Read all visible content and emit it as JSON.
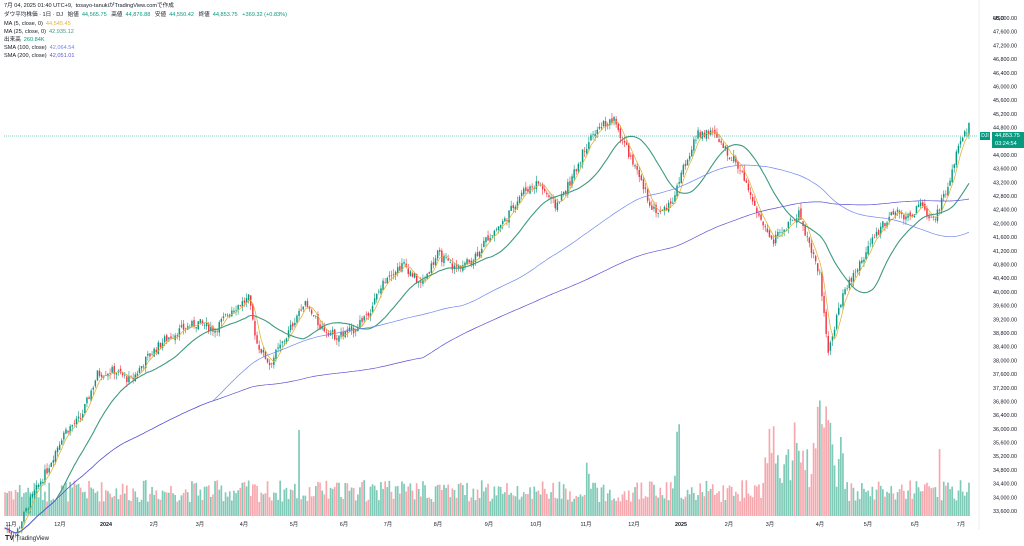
{
  "header": {
    "line1_prefix": "7月 04, 2025 01:40 UTC+9,",
    "line1_user": "tosayo-tanukiがTradingView.comで作成",
    "symbol_title": "ダウ平均株価 · 1日 · DJ",
    "ohlc": {
      "open_label": "始値",
      "open": "44,565.75",
      "high_label": "高値",
      "high": "44,876.88",
      "low_label": "安値",
      "low": "44,550.42",
      "close_label": "終値",
      "close": "44,853.75",
      "change": "+369.32 (+0.83%)"
    },
    "indicators": [
      {
        "label": "MA (5, close, 0)",
        "value": "44,545.45",
        "color": "#e0b43b"
      },
      {
        "label": "MA (25, close, 0)",
        "value": "42,935.12",
        "color": "#3e9a80"
      },
      {
        "label": "出来高",
        "value": "260.84K",
        "color": "#089981"
      },
      {
        "label": "SMA (100, close)",
        "value": "42,064.54",
        "color": "#6f86f0"
      },
      {
        "label": "SMA (200, close)",
        "value": "42,051.01",
        "color": "#5b52d6"
      }
    ]
  },
  "price_axis": {
    "currency": "USD",
    "ticks": [
      "48,000.00",
      "47,600.00",
      "47,200.00",
      "46,800.00",
      "46,400.00",
      "46,000.00",
      "45,600.00",
      "45,200.00",
      "44,800.00",
      "44,400.00",
      "44,000.00",
      "43,600.00",
      "43,200.00",
      "42,800.00",
      "42,400.00",
      "42,000.00",
      "41,600.00",
      "41,200.00",
      "40,800.00",
      "40,400.00",
      "40,000.00",
      "39,600.00",
      "39,200.00",
      "38,800.00",
      "38,400.00",
      "38,000.00",
      "37,600.00",
      "37,200.00",
      "36,800.00",
      "36,400.00",
      "36,000.00",
      "35,600.00",
      "35,200.00",
      "34,800.00",
      "34,400.00",
      "34,000.00",
      "33,600.00"
    ],
    "last_price_tag": "44,853.75",
    "second_tag": "03:24:54",
    "small_tag": "DJI"
  },
  "time_axis": {
    "labels": [
      "11月",
      "12月",
      "2024",
      "2月",
      "3月",
      "4月",
      "5月",
      "6月",
      "7月",
      "8月",
      "9月",
      "10月",
      "11月",
      "12月",
      "2025",
      "2月",
      "3月",
      "4月",
      "5月",
      "6月",
      "7月"
    ]
  },
  "brand": {
    "name": "TradingView",
    "logo": "TV"
  },
  "chart_data": {
    "type": "candlestick",
    "x_range": [
      "2023-10-24",
      "2025-07-03"
    ],
    "ylim": [
      33600,
      48200
    ],
    "grid": false,
    "colors": {
      "up": "#089981",
      "down": "#f23645",
      "ma5": "#e0b43b",
      "ma25": "#3e9a80",
      "sma100": "#6f86f0",
      "sma200": "#5b52d6",
      "vol_up": "#7fcbb8",
      "vol_down": "#f7a8ae"
    },
    "close_path_keypoints": [
      [
        0,
        33100
      ],
      [
        5,
        32900
      ],
      [
        12,
        33900
      ],
      [
        20,
        34800
      ],
      [
        28,
        35900
      ],
      [
        36,
        36300
      ],
      [
        44,
        37600
      ],
      [
        52,
        37700
      ],
      [
        60,
        37400
      ],
      [
        68,
        38100
      ],
      [
        76,
        38600
      ],
      [
        84,
        38900
      ],
      [
        92,
        39100
      ],
      [
        100,
        38900
      ],
      [
        108,
        39500
      ],
      [
        116,
        39800
      ],
      [
        120,
        38500
      ],
      [
        126,
        37900
      ],
      [
        134,
        38700
      ],
      [
        142,
        39700
      ],
      [
        150,
        39000
      ],
      [
        158,
        38700
      ],
      [
        166,
        38900
      ],
      [
        174,
        39500
      ],
      [
        182,
        40500
      ],
      [
        190,
        40800
      ],
      [
        198,
        40200
      ],
      [
        206,
        41100
      ],
      [
        214,
        40700
      ],
      [
        222,
        40900
      ],
      [
        230,
        41600
      ],
      [
        238,
        42100
      ],
      [
        246,
        42900
      ],
      [
        254,
        43200
      ],
      [
        262,
        42500
      ],
      [
        270,
        43300
      ],
      [
        276,
        44200
      ],
      [
        284,
        44900
      ],
      [
        290,
        45000
      ],
      [
        296,
        44200
      ],
      [
        302,
        43300
      ],
      [
        308,
        42500
      ],
      [
        312,
        42300
      ],
      [
        318,
        42700
      ],
      [
        324,
        43800
      ],
      [
        330,
        44600
      ],
      [
        336,
        44700
      ],
      [
        342,
        44200
      ],
      [
        348,
        43800
      ],
      [
        354,
        43100
      ],
      [
        360,
        42000
      ],
      [
        366,
        41500
      ],
      [
        372,
        41900
      ],
      [
        378,
        42300
      ],
      [
        382,
        41600
      ],
      [
        388,
        40500
      ],
      [
        392,
        38300
      ],
      [
        396,
        39200
      ],
      [
        400,
        40100
      ],
      [
        406,
        40700
      ],
      [
        412,
        41400
      ],
      [
        418,
        42000
      ],
      [
        424,
        42300
      ],
      [
        430,
        42200
      ],
      [
        436,
        42500
      ],
      [
        442,
        42100
      ],
      [
        448,
        42900
      ],
      [
        452,
        43800
      ],
      [
        456,
        44500
      ],
      [
        459,
        44850
      ]
    ],
    "ma25_keypoints": [
      [
        0,
        33300
      ],
      [
        30,
        33700
      ],
      [
        60,
        35900
      ],
      [
        90,
        37200
      ],
      [
        120,
        38400
      ],
      [
        150,
        39100
      ],
      [
        180,
        38800
      ],
      [
        210,
        39200
      ],
      [
        240,
        39700
      ],
      [
        260,
        40100
      ],
      [
        280,
        40400
      ],
      [
        300,
        41000
      ],
      [
        320,
        41800
      ],
      [
        340,
        42500
      ],
      [
        360,
        43300
      ],
      [
        370,
        44400
      ],
      [
        380,
        43900
      ],
      [
        392,
        42600
      ],
      [
        402,
        43000
      ],
      [
        414,
        44000
      ],
      [
        428,
        44700
      ],
      [
        440,
        43500
      ],
      [
        452,
        42600
      ],
      [
        462,
        41500
      ],
      [
        472,
        39500
      ],
      [
        480,
        40000
      ],
      [
        492,
        41500
      ],
      [
        506,
        42300
      ],
      [
        520,
        42500
      ],
      [
        530,
        43000
      ]
    ],
    "sma100_keypoints": [
      [
        0,
        33000
      ],
      [
        60,
        33400
      ],
      [
        120,
        34500
      ],
      [
        180,
        36100
      ],
      [
        240,
        37400
      ],
      [
        300,
        38200
      ],
      [
        360,
        38900
      ],
      [
        420,
        39700
      ],
      [
        480,
        40600
      ],
      [
        540,
        41700
      ],
      [
        600,
        42500
      ],
      [
        660,
        43100
      ],
      [
        720,
        43400
      ],
      [
        780,
        43300
      ],
      [
        840,
        42600
      ],
      [
        900,
        42200
      ],
      [
        960,
        42100
      ]
    ],
    "sma200_keypoints": [
      [
        0,
        33000
      ],
      [
        80,
        33200
      ],
      [
        160,
        34000
      ],
      [
        240,
        35200
      ],
      [
        320,
        36300
      ],
      [
        400,
        37200
      ],
      [
        480,
        38000
      ],
      [
        560,
        38900
      ],
      [
        640,
        39700
      ],
      [
        720,
        40500
      ],
      [
        780,
        41500
      ],
      [
        820,
        41900
      ],
      [
        880,
        42000
      ],
      [
        960,
        42100
      ]
    ]
  }
}
